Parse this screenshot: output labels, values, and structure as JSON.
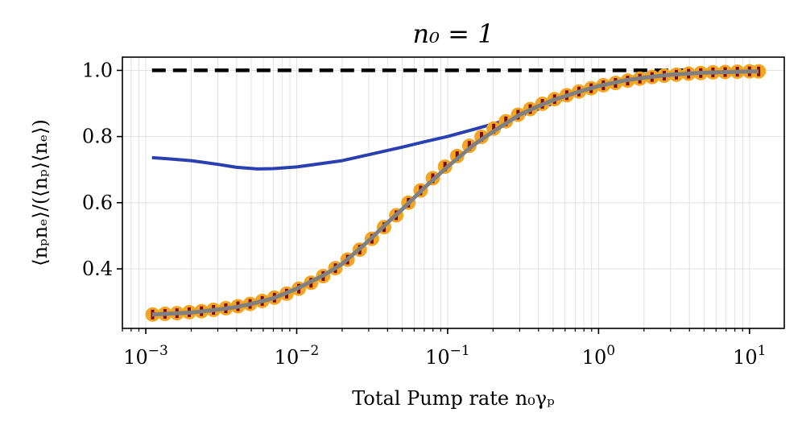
{
  "chart_data": {
    "type": "line",
    "title": "n₀ = 1",
    "xlabel": "Total Pump rate n₀γₚ",
    "ylabel": "⟨nₚnₑ⟩/(⟨nₚ⟩⟨nₑ⟩)",
    "x_scale": "log",
    "xlim": [
      0.0007,
      17
    ],
    "ylim": [
      0.22,
      1.04
    ],
    "x_ticks": [
      {
        "value": 0.001,
        "base": "10",
        "exp": "−3"
      },
      {
        "value": 0.01,
        "base": "10",
        "exp": "−2"
      },
      {
        "value": 0.1,
        "base": "10",
        "exp": "−1"
      },
      {
        "value": 1,
        "base": "10",
        "exp": "0"
      },
      {
        "value": 10,
        "base": "10",
        "exp": "1"
      }
    ],
    "y_ticks": [
      {
        "value": 0.4,
        "label": "0.4"
      },
      {
        "value": 0.6,
        "label": "0.6"
      },
      {
        "value": 0.8,
        "label": "0.8"
      },
      {
        "value": 1.0,
        "label": "1.0"
      }
    ],
    "grid": true,
    "series": [
      {
        "style": "dashed",
        "color": "#000000",
        "x": [
          0.0011,
          11.5
        ],
        "y": [
          1.0,
          1.0
        ]
      },
      {
        "style": "solid",
        "color": "#2a3fb0",
        "x": [
          0.0011,
          0.0014,
          0.002,
          0.003,
          0.004,
          0.0055,
          0.007,
          0.01,
          0.015,
          0.02,
          0.03,
          0.05,
          0.07,
          0.1,
          0.15,
          0.2,
          0.3,
          0.5,
          0.7,
          1.0,
          1.5,
          2.0,
          3.0,
          5.0,
          10.0,
          11.5
        ],
        "y": [
          0.736,
          0.733,
          0.727,
          0.716,
          0.707,
          0.702,
          0.703,
          0.708,
          0.719,
          0.727,
          0.745,
          0.768,
          0.784,
          0.8,
          0.822,
          0.838,
          0.862,
          0.9,
          0.93,
          0.958,
          0.976,
          0.986,
          0.993,
          0.997,
          0.999,
          1.0
        ]
      },
      {
        "style": "markers",
        "color": "#f4a623",
        "marker_color": "#7a0c0c",
        "x": [
          0.00111,
          0.00134,
          0.00161,
          0.00194,
          0.00234,
          0.00281,
          0.00339,
          0.00408,
          0.00491,
          0.00591,
          0.00712,
          0.00858,
          0.01033,
          0.01244,
          0.01498,
          0.01804,
          0.02172,
          0.02615,
          0.03149,
          0.03792,
          0.04566,
          0.05499,
          0.06622,
          0.07975,
          0.09603,
          0.1156,
          0.1392,
          0.1677,
          0.2019,
          0.2432,
          0.2928,
          0.3526,
          0.4246,
          0.5113,
          0.6157,
          0.7414,
          0.8928,
          1.075,
          1.295,
          1.559,
          1.877,
          2.261,
          2.722,
          3.278,
          3.948,
          4.754,
          5.725,
          6.894,
          8.302,
          9.997,
          11.5
        ],
        "y": [
          0.262,
          0.264,
          0.266,
          0.269,
          0.272,
          0.276,
          0.281,
          0.287,
          0.294,
          0.303,
          0.313,
          0.325,
          0.34,
          0.358,
          0.378,
          0.402,
          0.428,
          0.458,
          0.491,
          0.526,
          0.562,
          0.6,
          0.637,
          0.674,
          0.709,
          0.741,
          0.772,
          0.799,
          0.824,
          0.846,
          0.866,
          0.883,
          0.899,
          0.913,
          0.925,
          0.936,
          0.946,
          0.955,
          0.962,
          0.969,
          0.975,
          0.98,
          0.984,
          0.987,
          0.99,
          0.992,
          0.994,
          0.995,
          0.996,
          0.997,
          0.997
        ]
      },
      {
        "style": "solid",
        "color": "#808080",
        "x": [
          0.0011,
          0.0015,
          0.002,
          0.003,
          0.004,
          0.005,
          0.007,
          0.01,
          0.015,
          0.02,
          0.03,
          0.04,
          0.05,
          0.07,
          0.1,
          0.15,
          0.2,
          0.3,
          0.4,
          0.5,
          0.7,
          1.0,
          1.5,
          2.0,
          3.0,
          5.0,
          7.0,
          10.0,
          11.5
        ],
        "y": [
          0.262,
          0.265,
          0.268,
          0.277,
          0.285,
          0.294,
          0.311,
          0.34,
          0.38,
          0.415,
          0.485,
          0.54,
          0.58,
          0.645,
          0.709,
          0.776,
          0.815,
          0.866,
          0.892,
          0.91,
          0.932,
          0.953,
          0.97,
          0.978,
          0.987,
          0.993,
          0.995,
          0.997,
          0.997
        ]
      }
    ]
  }
}
